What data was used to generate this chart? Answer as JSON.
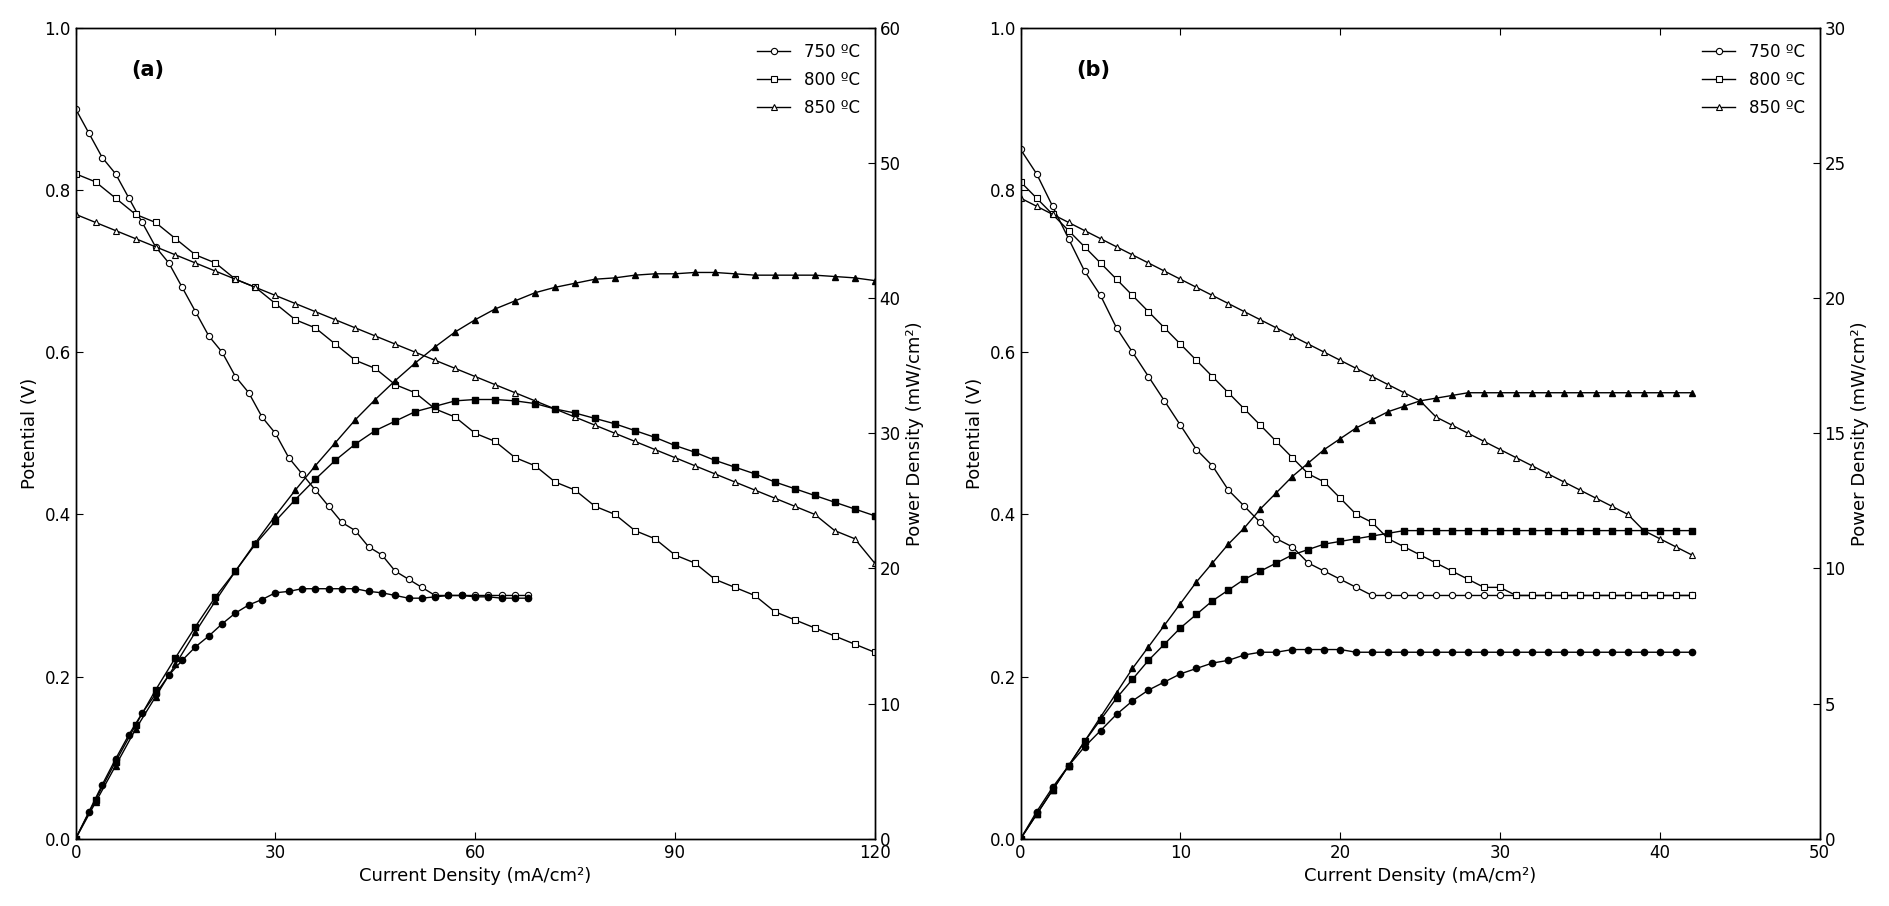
{
  "panel_a": {
    "label": "(a)",
    "xlim": [
      0,
      120
    ],
    "ylim_left": [
      0,
      1
    ],
    "ylim_right": [
      0,
      60
    ],
    "xticks": [
      0,
      30,
      60,
      90,
      120
    ],
    "yticks_left": [
      0,
      0.2,
      0.4,
      0.6,
      0.8,
      1
    ],
    "yticks_right": [
      0,
      10,
      20,
      30,
      40,
      50,
      60
    ],
    "xlabel": "Current Density (mA/cm²)",
    "ylabel_left": "Potential (V)",
    "ylabel_right": "Power Density (mW/cm²)",
    "iv_750": {
      "current": [
        0,
        2,
        4,
        6,
        8,
        10,
        12,
        14,
        16,
        18,
        20,
        22,
        24,
        26,
        28,
        30,
        32,
        34,
        36,
        38,
        40,
        42,
        44,
        46,
        48,
        50,
        52,
        54,
        56,
        58,
        60,
        62,
        64,
        66,
        68
      ],
      "voltage": [
        0.9,
        0.87,
        0.84,
        0.82,
        0.79,
        0.76,
        0.73,
        0.71,
        0.68,
        0.65,
        0.62,
        0.6,
        0.57,
        0.55,
        0.52,
        0.5,
        0.47,
        0.45,
        0.43,
        0.41,
        0.39,
        0.38,
        0.36,
        0.35,
        0.33,
        0.32,
        0.31,
        0.3,
        0.3,
        0.3,
        0.3,
        0.3,
        0.3,
        0.3,
        0.3
      ]
    },
    "ip_750": {
      "current": [
        0,
        2,
        4,
        6,
        8,
        10,
        12,
        14,
        16,
        18,
        20,
        22,
        24,
        26,
        28,
        30,
        32,
        34,
        36,
        38,
        40,
        42,
        44,
        46,
        48,
        50,
        52,
        54,
        56,
        58,
        60,
        62,
        64,
        66,
        68
      ],
      "power": [
        0,
        2.0,
        4.0,
        5.9,
        7.7,
        9.3,
        10.7,
        12.1,
        13.2,
        14.2,
        15.0,
        15.9,
        16.7,
        17.3,
        17.7,
        18.2,
        18.3,
        18.5,
        18.5,
        18.5,
        18.5,
        18.5,
        18.3,
        18.2,
        18.0,
        17.8,
        17.8,
        17.9,
        18.0,
        18.0,
        17.9,
        17.9,
        17.8,
        17.8,
        17.8
      ]
    },
    "iv_800": {
      "current": [
        0,
        3,
        6,
        9,
        12,
        15,
        18,
        21,
        24,
        27,
        30,
        33,
        36,
        39,
        42,
        45,
        48,
        51,
        54,
        57,
        60,
        63,
        66,
        69,
        72,
        75,
        78,
        81,
        84,
        87,
        90,
        93,
        96,
        99,
        102,
        105,
        108,
        111,
        114,
        117,
        120
      ],
      "voltage": [
        0.82,
        0.81,
        0.79,
        0.77,
        0.76,
        0.74,
        0.72,
        0.71,
        0.69,
        0.68,
        0.66,
        0.64,
        0.63,
        0.61,
        0.59,
        0.58,
        0.56,
        0.55,
        0.53,
        0.52,
        0.5,
        0.49,
        0.47,
        0.46,
        0.44,
        0.43,
        0.41,
        0.4,
        0.38,
        0.37,
        0.35,
        0.34,
        0.32,
        0.31,
        0.3,
        0.28,
        0.27,
        0.26,
        0.25,
        0.24,
        0.23
      ]
    },
    "ip_800": {
      "current": [
        0,
        3,
        6,
        9,
        12,
        15,
        18,
        21,
        24,
        27,
        30,
        33,
        36,
        39,
        42,
        45,
        48,
        51,
        54,
        57,
        60,
        63,
        66,
        69,
        72,
        75,
        78,
        81,
        84,
        87,
        90,
        93,
        96,
        99,
        102,
        105,
        108,
        111,
        114,
        117,
        120
      ],
      "power": [
        0,
        2.9,
        5.7,
        8.4,
        11.0,
        13.4,
        15.7,
        17.9,
        19.8,
        21.8,
        23.5,
        25.1,
        26.6,
        28.0,
        29.2,
        30.2,
        30.9,
        31.6,
        32.0,
        32.4,
        32.5,
        32.5,
        32.4,
        32.2,
        31.8,
        31.5,
        31.1,
        30.7,
        30.2,
        29.7,
        29.1,
        28.6,
        28.0,
        27.5,
        27.0,
        26.4,
        25.9,
        25.4,
        24.9,
        24.4,
        23.9
      ]
    },
    "iv_850": {
      "current": [
        0,
        3,
        6,
        9,
        12,
        15,
        18,
        21,
        24,
        27,
        30,
        33,
        36,
        39,
        42,
        45,
        48,
        51,
        54,
        57,
        60,
        63,
        66,
        69,
        72,
        75,
        78,
        81,
        84,
        87,
        90,
        93,
        96,
        99,
        102,
        105,
        108,
        111,
        114,
        117,
        120
      ],
      "voltage": [
        0.77,
        0.76,
        0.75,
        0.74,
        0.73,
        0.72,
        0.71,
        0.7,
        0.69,
        0.68,
        0.67,
        0.66,
        0.65,
        0.64,
        0.63,
        0.62,
        0.61,
        0.6,
        0.59,
        0.58,
        0.57,
        0.56,
        0.55,
        0.54,
        0.53,
        0.52,
        0.51,
        0.5,
        0.49,
        0.48,
        0.47,
        0.46,
        0.45,
        0.44,
        0.43,
        0.42,
        0.41,
        0.4,
        0.38,
        0.37,
        0.34
      ]
    },
    "ip_850": {
      "current": [
        0,
        3,
        6,
        9,
        12,
        15,
        18,
        21,
        24,
        27,
        30,
        33,
        36,
        39,
        42,
        45,
        48,
        51,
        54,
        57,
        60,
        63,
        66,
        69,
        72,
        75,
        78,
        81,
        84,
        87,
        90,
        93,
        96,
        99,
        102,
        105,
        108,
        111,
        114,
        117,
        120
      ],
      "power": [
        0,
        2.7,
        5.4,
        8.1,
        10.5,
        12.9,
        15.3,
        17.6,
        19.8,
        21.9,
        23.9,
        25.8,
        27.6,
        29.3,
        31.0,
        32.5,
        33.9,
        35.2,
        36.4,
        37.5,
        38.4,
        39.2,
        39.8,
        40.4,
        40.8,
        41.1,
        41.4,
        41.5,
        41.7,
        41.8,
        41.8,
        41.9,
        41.9,
        41.8,
        41.7,
        41.7,
        41.7,
        41.7,
        41.6,
        41.5,
        41.3
      ]
    }
  },
  "panel_b": {
    "label": "(b)",
    "xlim": [
      0,
      50
    ],
    "ylim_left": [
      0.0,
      1.0
    ],
    "ylim_right": [
      0,
      30
    ],
    "xticks": [
      0,
      10,
      20,
      30,
      40,
      50
    ],
    "yticks_left": [
      0.0,
      0.2,
      0.4,
      0.6,
      0.8,
      1.0
    ],
    "yticks_right": [
      0,
      5,
      10,
      15,
      20,
      25,
      30
    ],
    "xlabel": "Current Density (mA/cm²)",
    "ylabel_left": "Potential (V)",
    "ylabel_right": "Power Density (mW/cm²)",
    "iv_750": {
      "current": [
        0,
        1,
        2,
        3,
        4,
        5,
        6,
        7,
        8,
        9,
        10,
        11,
        12,
        13,
        14,
        15,
        16,
        17,
        18,
        19,
        20,
        21,
        22,
        23,
        24,
        25,
        26,
        27,
        28,
        29,
        30,
        31,
        32,
        33,
        34,
        35,
        36,
        37,
        38,
        39,
        40,
        41,
        42
      ],
      "voltage": [
        0.85,
        0.82,
        0.78,
        0.74,
        0.7,
        0.67,
        0.63,
        0.6,
        0.57,
        0.54,
        0.51,
        0.48,
        0.46,
        0.43,
        0.41,
        0.39,
        0.37,
        0.36,
        0.34,
        0.33,
        0.32,
        0.31,
        0.3,
        0.3,
        0.3,
        0.3,
        0.3,
        0.3,
        0.3,
        0.3,
        0.3,
        0.3,
        0.3,
        0.3,
        0.3,
        0.3,
        0.3,
        0.3,
        0.3,
        0.3,
        0.3,
        0.3,
        0.3
      ]
    },
    "ip_750": {
      "current": [
        0,
        1,
        2,
        3,
        4,
        5,
        6,
        7,
        8,
        9,
        10,
        11,
        12,
        13,
        14,
        15,
        16,
        17,
        18,
        19,
        20,
        21,
        22,
        23,
        24,
        25,
        26,
        27,
        28,
        29,
        30,
        31,
        32,
        33,
        34,
        35,
        36,
        37,
        38,
        39,
        40,
        41,
        42
      ],
      "power": [
        0,
        1.0,
        1.9,
        2.7,
        3.4,
        4.0,
        4.6,
        5.1,
        5.5,
        5.8,
        6.1,
        6.3,
        6.5,
        6.6,
        6.8,
        6.9,
        6.9,
        7.0,
        7.0,
        7.0,
        7.0,
        6.9,
        6.9,
        6.9,
        6.9,
        6.9,
        6.9,
        6.9,
        6.9,
        6.9,
        6.9,
        6.9,
        6.9,
        6.9,
        6.9,
        6.9,
        6.9,
        6.9,
        6.9,
        6.9,
        6.9,
        6.9,
        6.9
      ]
    },
    "iv_800": {
      "current": [
        0,
        1,
        2,
        3,
        4,
        5,
        6,
        7,
        8,
        9,
        10,
        11,
        12,
        13,
        14,
        15,
        16,
        17,
        18,
        19,
        20,
        21,
        22,
        23,
        24,
        25,
        26,
        27,
        28,
        29,
        30,
        31,
        32,
        33,
        34,
        35,
        36,
        37,
        38,
        39,
        40,
        41,
        42
      ],
      "voltage": [
        0.81,
        0.79,
        0.77,
        0.75,
        0.73,
        0.71,
        0.69,
        0.67,
        0.65,
        0.63,
        0.61,
        0.59,
        0.57,
        0.55,
        0.53,
        0.51,
        0.49,
        0.47,
        0.45,
        0.44,
        0.42,
        0.4,
        0.39,
        0.37,
        0.36,
        0.35,
        0.34,
        0.33,
        0.32,
        0.31,
        0.31,
        0.3,
        0.3,
        0.3,
        0.3,
        0.3,
        0.3,
        0.3,
        0.3,
        0.3,
        0.3,
        0.3,
        0.3
      ]
    },
    "ip_800": {
      "current": [
        0,
        1,
        2,
        3,
        4,
        5,
        6,
        7,
        8,
        9,
        10,
        11,
        12,
        13,
        14,
        15,
        16,
        17,
        18,
        19,
        20,
        21,
        22,
        23,
        24,
        25,
        26,
        27,
        28,
        29,
        30,
        31,
        32,
        33,
        34,
        35,
        36,
        37,
        38,
        39,
        40,
        41,
        42
      ],
      "power": [
        0,
        0.9,
        1.8,
        2.7,
        3.6,
        4.4,
        5.2,
        5.9,
        6.6,
        7.2,
        7.8,
        8.3,
        8.8,
        9.2,
        9.6,
        9.9,
        10.2,
        10.5,
        10.7,
        10.9,
        11.0,
        11.1,
        11.2,
        11.3,
        11.4,
        11.4,
        11.4,
        11.4,
        11.4,
        11.4,
        11.4,
        11.4,
        11.4,
        11.4,
        11.4,
        11.4,
        11.4,
        11.4,
        11.4,
        11.4,
        11.4,
        11.4,
        11.4
      ]
    },
    "iv_850": {
      "current": [
        0,
        1,
        2,
        3,
        4,
        5,
        6,
        7,
        8,
        9,
        10,
        11,
        12,
        13,
        14,
        15,
        16,
        17,
        18,
        19,
        20,
        21,
        22,
        23,
        24,
        25,
        26,
        27,
        28,
        29,
        30,
        31,
        32,
        33,
        34,
        35,
        36,
        37,
        38,
        39,
        40,
        41,
        42
      ],
      "voltage": [
        0.79,
        0.78,
        0.77,
        0.76,
        0.75,
        0.74,
        0.73,
        0.72,
        0.71,
        0.7,
        0.69,
        0.68,
        0.67,
        0.66,
        0.65,
        0.64,
        0.63,
        0.62,
        0.61,
        0.6,
        0.59,
        0.58,
        0.57,
        0.56,
        0.55,
        0.54,
        0.52,
        0.51,
        0.5,
        0.49,
        0.48,
        0.47,
        0.46,
        0.45,
        0.44,
        0.43,
        0.42,
        0.41,
        0.4,
        0.38,
        0.37,
        0.36,
        0.35
      ]
    },
    "ip_850": {
      "current": [
        0,
        1,
        2,
        3,
        4,
        5,
        6,
        7,
        8,
        9,
        10,
        11,
        12,
        13,
        14,
        15,
        16,
        17,
        18,
        19,
        20,
        21,
        22,
        23,
        24,
        25,
        26,
        27,
        28,
        29,
        30,
        31,
        32,
        33,
        34,
        35,
        36,
        37,
        38,
        39,
        40,
        41,
        42
      ],
      "power": [
        0,
        0.9,
        1.8,
        2.7,
        3.6,
        4.5,
        5.4,
        6.3,
        7.1,
        7.9,
        8.7,
        9.5,
        10.2,
        10.9,
        11.5,
        12.2,
        12.8,
        13.4,
        13.9,
        14.4,
        14.8,
        15.2,
        15.5,
        15.8,
        16.0,
        16.2,
        16.3,
        16.4,
        16.5,
        16.5,
        16.5,
        16.5,
        16.5,
        16.5,
        16.5,
        16.5,
        16.5,
        16.5,
        16.5,
        16.5,
        16.5,
        16.5,
        16.5
      ]
    }
  },
  "legend_labels": [
    "750 ºC",
    "800 ºC",
    "850 ºC"
  ],
  "marker_size": 4.5,
  "line_width": 1.0,
  "font_size_label": 13,
  "font_size_tick": 12,
  "font_size_legend": 12,
  "font_size_panel_label": 15
}
